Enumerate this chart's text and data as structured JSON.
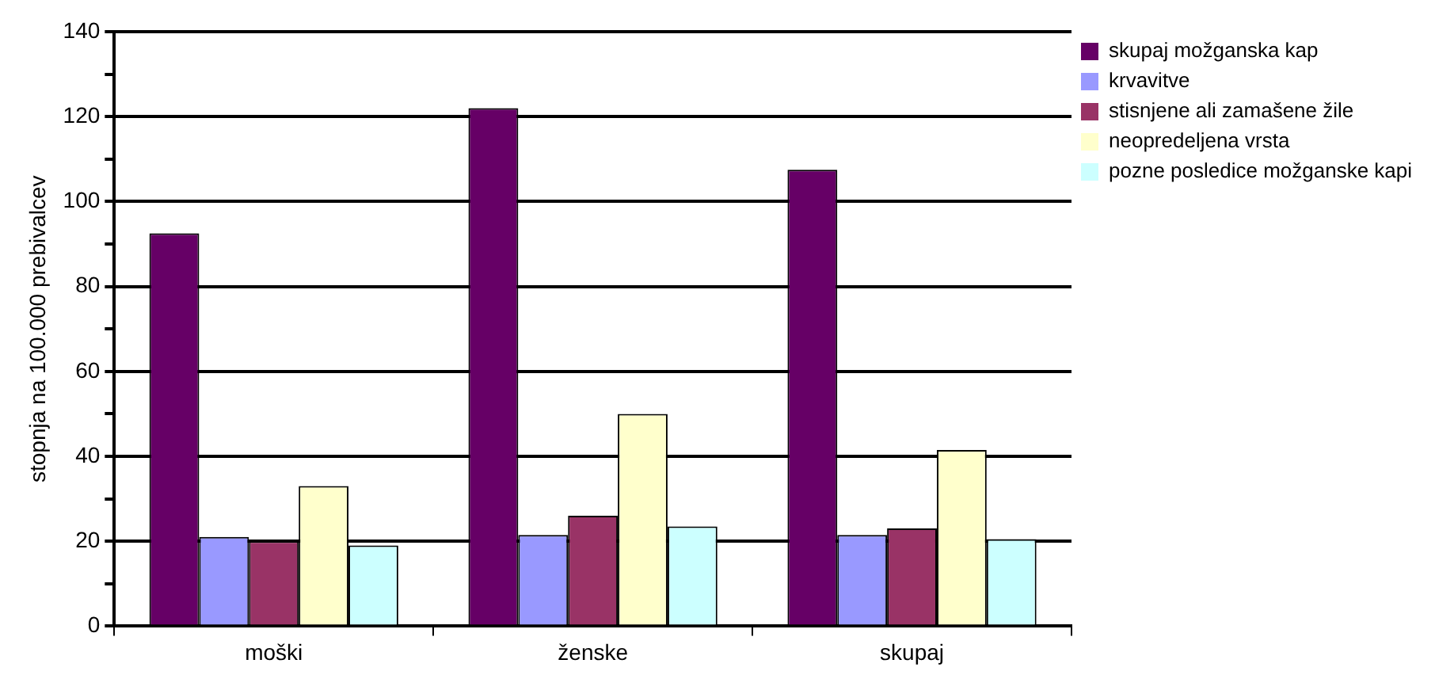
{
  "chart_data": {
    "type": "bar",
    "ylabel": "stopnja na 100.000 prebivalcev",
    "categories": [
      "moški",
      "ženske",
      "skupaj"
    ],
    "series": [
      {
        "name": "skupaj možganska kap",
        "color": "#660066",
        "values": [
          92.5,
          122,
          107.5
        ]
      },
      {
        "name": "krvavitve",
        "color": "#9999ff",
        "values": [
          21,
          21.5,
          21.5
        ]
      },
      {
        "name": "stisnjene ali zamašene žile",
        "color": "#993366",
        "values": [
          20,
          26,
          23
        ]
      },
      {
        "name": "neopredeljena vrsta",
        "color": "#ffffcc",
        "values": [
          33,
          50,
          41.5
        ]
      },
      {
        "name": "pozne posledice možganske kapi",
        "color": "#ccffff",
        "values": [
          19,
          23.5,
          20.5
        ]
      }
    ],
    "ylim": [
      0,
      140
    ],
    "yticks": [
      0,
      {
        "value": 10,
        "label": null
      },
      20,
      {
        "value": 30,
        "label": null
      },
      40,
      {
        "value": 50,
        "label": null
      },
      60,
      {
        "value": 70,
        "label": null
      },
      80,
      {
        "value": 90,
        "label": null
      },
      100,
      {
        "value": 110,
        "label": null
      },
      120,
      {
        "value": 130,
        "label": null
      },
      140
    ],
    "grid": "y",
    "legend": "top right"
  }
}
